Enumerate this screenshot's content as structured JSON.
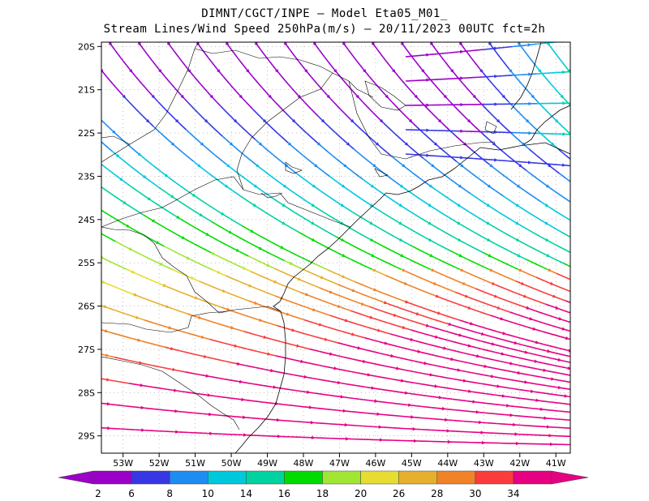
{
  "header": {
    "line1": "DIMNT/CGCT/INPE –  Model Eta05_M01_",
    "line2": "Stream Lines/Wind Speed 250hPa(m/s) –  20/11/2023 00UTC fct=2h"
  },
  "chart_data": {
    "type": "map-streamlines",
    "variable": "Wind Speed 250hPa (m/s)",
    "lon_range": [
      -53.6,
      -40.6
    ],
    "lat_range": [
      -29.4,
      -19.9
    ],
    "lon_ticks": [
      "53W",
      "52W",
      "51W",
      "50W",
      "49W",
      "48W",
      "47W",
      "46W",
      "45W",
      "44W",
      "43W",
      "42W",
      "41W"
    ],
    "lat_ticks": [
      "20S",
      "21S",
      "22S",
      "23S",
      "24S",
      "25S",
      "26S",
      "27S",
      "28S",
      "29S"
    ],
    "colorbar": {
      "labels": [
        "2",
        "6",
        "8",
        "10",
        "14",
        "16",
        "18",
        "20",
        "26",
        "28",
        "30",
        "34"
      ],
      "colors": [
        "#9b00c8",
        "#3737e6",
        "#1e8cf0",
        "#00c8dc",
        "#00d2a0",
        "#00dc00",
        "#a0e632",
        "#e6dc32",
        "#e6af2d",
        "#f08228",
        "#fa3c3c",
        "#e60082"
      ]
    },
    "colors": {
      "frame": "#000000",
      "coast": "#000000",
      "grid": "#999999"
    }
  }
}
